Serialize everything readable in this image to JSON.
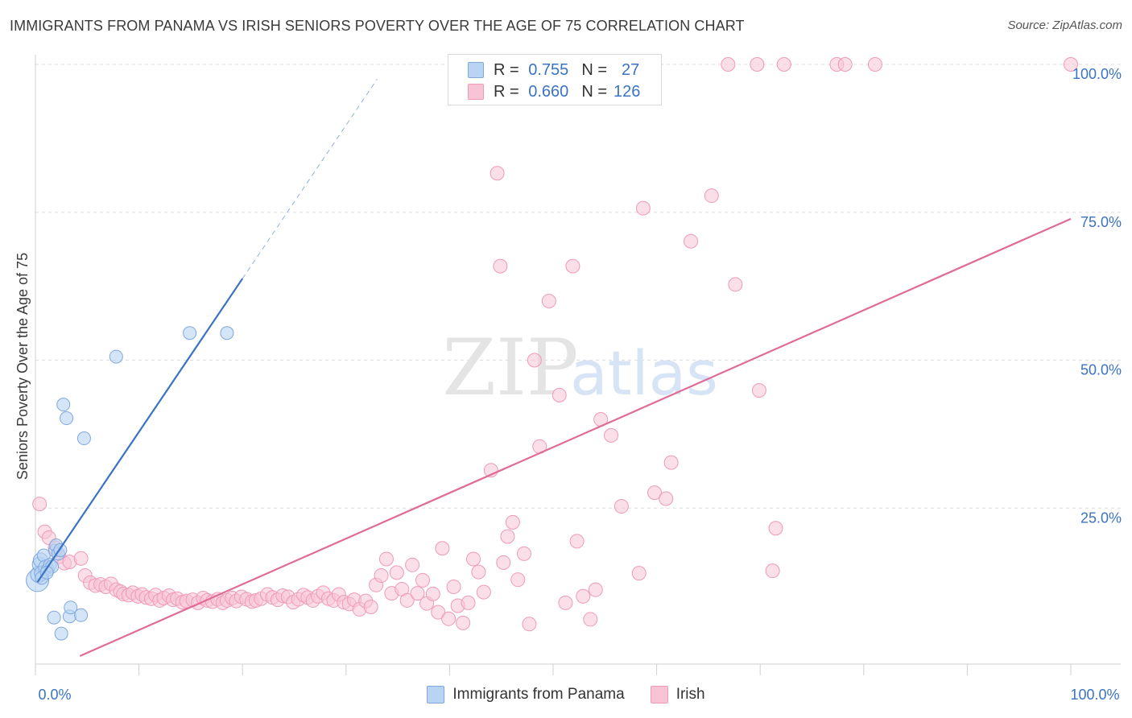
{
  "title": "IMMIGRANTS FROM PANAMA VS IRISH SENIORS POVERTY OVER THE AGE OF 75 CORRELATION CHART",
  "source": "Source: ZipAtlas.com",
  "watermark": {
    "zip": "ZIP",
    "atlas": "atlas"
  },
  "colors": {
    "blue": "#3b73c4",
    "blue_fill": "#b9d3f3",
    "blue_stroke": "#7fa8de",
    "pink": "#e06b97",
    "pink_fill": "#f8c4d5",
    "pink_stroke": "#ef9ab8",
    "grid": "#dddddd"
  },
  "legend": {
    "rows": [
      {
        "r_label": "R =",
        "r_value": "0.755",
        "n_label": "N =",
        "n_value": "27"
      },
      {
        "r_label": "R =",
        "r_value": "0.660",
        "n_label": "N =",
        "n_value": "126"
      }
    ]
  },
  "bottom_legend": [
    "Immigrants from Panama",
    "Irish"
  ],
  "chart_data": {
    "type": "scatter",
    "title": "IMMIGRANTS FROM PANAMA VS IRISH SENIORS POVERTY OVER THE AGE OF 75 CORRELATION CHART",
    "xlabel": "",
    "ylabel": "Seniors Poverty Over the Age of 75",
    "xlim": [
      0,
      100
    ],
    "ylim": [
      0,
      100
    ],
    "x_tick_labels": [
      "0.0%",
      "100.0%"
    ],
    "y_ticks": [
      {
        "value": 25,
        "label": "25.0%"
      },
      {
        "value": 50,
        "label": "50.0%"
      },
      {
        "value": 75,
        "label": "75.0%"
      },
      {
        "value": 100,
        "label": "100.0%"
      }
    ],
    "grid": true,
    "legend_position": "top-center",
    "series": [
      {
        "name": "Immigrants from Panama",
        "color": "#3b73c4",
        "r": 0.755,
        "n": 27,
        "trend": {
          "x0": 0.2,
          "y0": 12.5,
          "x1": 20.0,
          "y1": 63.8,
          "dashed_to_x": 33.0,
          "dashed_to_y": 97.5
        },
        "points": [
          [
            0.2,
            12.8,
            14
          ],
          [
            0.3,
            13.8,
            10
          ],
          [
            0.4,
            15.5,
            9
          ],
          [
            0.5,
            16.2,
            9
          ],
          [
            0.6,
            14.0,
            9
          ],
          [
            0.8,
            17.0,
            8
          ],
          [
            1.0,
            15.0,
            9
          ],
          [
            1.2,
            14.6,
            8
          ],
          [
            1.4,
            15.4,
            8
          ],
          [
            1.6,
            15.1,
            8
          ],
          [
            1.9,
            17.8,
            8
          ],
          [
            2.0,
            18.7,
            8
          ],
          [
            2.2,
            17.3,
            8
          ],
          [
            2.4,
            17.9,
            8
          ],
          [
            1.8,
            6.5,
            8
          ],
          [
            2.5,
            3.8,
            8
          ],
          [
            3.3,
            6.7,
            8
          ],
          [
            3.4,
            8.2,
            8
          ],
          [
            4.4,
            6.9,
            8
          ],
          [
            2.7,
            42.5,
            8
          ],
          [
            3.0,
            40.2,
            8
          ],
          [
            4.7,
            36.8,
            8
          ],
          [
            7.8,
            50.6,
            8
          ],
          [
            14.9,
            54.6,
            8
          ],
          [
            18.5,
            54.6,
            8
          ],
          [
            0.6,
            13.2,
            8
          ],
          [
            1.1,
            14.1,
            8
          ]
        ]
      },
      {
        "name": "Irish",
        "color": "#e06b97",
        "r": 0.66,
        "n": 126,
        "trend": {
          "x0": 4.3,
          "y0": 0.0,
          "x1": 100.0,
          "y1": 73.9
        },
        "points": [
          [
            0.4,
            25.7
          ],
          [
            0.9,
            21.0
          ],
          [
            1.3,
            20.0
          ],
          [
            1.9,
            18.3
          ],
          [
            2.3,
            16.8
          ],
          [
            2.8,
            15.7
          ],
          [
            3.3,
            15.9
          ],
          [
            4.4,
            16.5
          ],
          [
            4.8,
            13.6
          ],
          [
            5.3,
            12.4
          ],
          [
            5.8,
            11.9
          ],
          [
            6.3,
            12.1
          ],
          [
            6.8,
            11.7
          ],
          [
            7.3,
            12.2
          ],
          [
            7.8,
            11.2
          ],
          [
            8.2,
            10.9
          ],
          [
            8.5,
            10.5
          ],
          [
            9.0,
            10.3
          ],
          [
            9.4,
            10.7
          ],
          [
            9.9,
            10.1
          ],
          [
            10.3,
            10.4
          ],
          [
            10.7,
            9.9
          ],
          [
            11.2,
            9.7
          ],
          [
            11.6,
            10.3
          ],
          [
            12.0,
            9.4
          ],
          [
            12.4,
            9.8
          ],
          [
            12.9,
            10.2
          ],
          [
            13.3,
            9.5
          ],
          [
            13.7,
            9.7
          ],
          [
            14.2,
            9.1
          ],
          [
            14.6,
            9.3
          ],
          [
            15.2,
            9.5
          ],
          [
            15.7,
            9.0
          ],
          [
            16.2,
            9.8
          ],
          [
            16.6,
            9.4
          ],
          [
            17.1,
            9.2
          ],
          [
            17.6,
            9.6
          ],
          [
            18.1,
            9.0
          ],
          [
            18.5,
            9.4
          ],
          [
            19.0,
            9.8
          ],
          [
            19.4,
            9.3
          ],
          [
            19.9,
            10.0
          ],
          [
            20.4,
            9.6
          ],
          [
            20.9,
            9.2
          ],
          [
            21.3,
            9.4
          ],
          [
            21.8,
            9.7
          ],
          [
            22.4,
            10.4
          ],
          [
            22.9,
            9.9
          ],
          [
            23.4,
            9.5
          ],
          [
            23.9,
            10.2
          ],
          [
            24.4,
            10.0
          ],
          [
            24.9,
            9.1
          ],
          [
            25.4,
            9.6
          ],
          [
            25.9,
            10.3
          ],
          [
            26.3,
            9.9
          ],
          [
            26.8,
            9.4
          ],
          [
            27.3,
            10.1
          ],
          [
            27.8,
            10.7
          ],
          [
            28.3,
            9.7
          ],
          [
            28.8,
            9.4
          ],
          [
            29.3,
            10.4
          ],
          [
            29.8,
            9.1
          ],
          [
            30.3,
            8.8
          ],
          [
            30.8,
            9.5
          ],
          [
            31.3,
            7.9
          ],
          [
            31.9,
            9.3
          ],
          [
            32.4,
            8.3
          ],
          [
            32.9,
            12.0
          ],
          [
            33.4,
            13.6
          ],
          [
            33.9,
            16.4
          ],
          [
            34.4,
            10.6
          ],
          [
            34.9,
            14.1
          ],
          [
            35.4,
            11.3
          ],
          [
            35.9,
            9.4
          ],
          [
            36.4,
            15.4
          ],
          [
            36.9,
            10.6
          ],
          [
            37.4,
            12.8
          ],
          [
            37.8,
            8.9
          ],
          [
            38.4,
            10.5
          ],
          [
            38.9,
            7.4
          ],
          [
            39.3,
            18.2
          ],
          [
            39.9,
            6.3
          ],
          [
            40.4,
            11.7
          ],
          [
            40.8,
            8.5
          ],
          [
            41.3,
            5.6
          ],
          [
            41.8,
            9.0
          ],
          [
            42.3,
            16.4
          ],
          [
            42.8,
            14.2
          ],
          [
            43.3,
            10.8
          ],
          [
            44.0,
            31.4
          ],
          [
            44.6,
            81.6
          ],
          [
            44.9,
            65.9
          ],
          [
            45.2,
            15.8
          ],
          [
            45.6,
            20.2
          ],
          [
            46.1,
            22.6
          ],
          [
            46.6,
            12.9
          ],
          [
            47.2,
            17.3
          ],
          [
            47.7,
            5.4
          ],
          [
            48.2,
            50.0
          ],
          [
            48.7,
            35.4
          ],
          [
            49.6,
            60.0
          ],
          [
            50.6,
            44.1
          ],
          [
            51.2,
            9.0
          ],
          [
            51.9,
            65.9
          ],
          [
            52.3,
            19.4
          ],
          [
            52.9,
            10.1
          ],
          [
            53.6,
            6.2
          ],
          [
            54.1,
            11.2
          ],
          [
            54.6,
            40.0
          ],
          [
            55.6,
            37.3
          ],
          [
            56.6,
            25.3
          ],
          [
            58.3,
            14.0
          ],
          [
            58.7,
            75.7
          ],
          [
            59.8,
            27.6
          ],
          [
            60.9,
            26.6
          ],
          [
            61.4,
            32.7
          ],
          [
            63.3,
            70.1
          ],
          [
            65.3,
            77.8
          ],
          [
            67.6,
            62.8
          ],
          [
            69.9,
            44.9
          ],
          [
            71.2,
            14.4
          ],
          [
            71.5,
            21.6
          ],
          [
            66.9,
            100.0
          ],
          [
            69.7,
            100.0
          ],
          [
            72.3,
            100.0
          ],
          [
            77.4,
            100.0
          ],
          [
            78.2,
            100.0
          ],
          [
            81.1,
            100.0
          ],
          [
            100.0,
            100.0
          ]
        ]
      }
    ]
  }
}
